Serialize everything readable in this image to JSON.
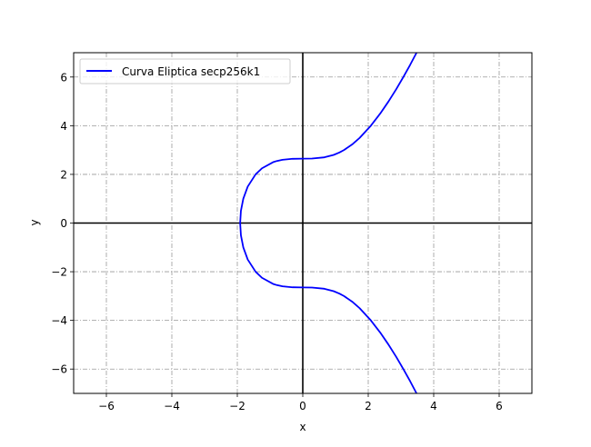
{
  "chart_data": {
    "type": "line",
    "title": "",
    "xlabel": "x",
    "ylabel": "y",
    "xlim": [
      -7,
      7
    ],
    "ylim": [
      -7,
      7
    ],
    "xticks": [
      -6,
      -4,
      -2,
      0,
      2,
      4,
      6
    ],
    "yticks": [
      -6,
      -4,
      -2,
      0,
      2,
      4,
      6
    ],
    "xtick_labels": [
      "−6",
      "−4",
      "−2",
      "0",
      "2",
      "4",
      "6"
    ],
    "ytick_labels": [
      "−6",
      "−4",
      "−2",
      "0",
      "2",
      "4",
      "6"
    ],
    "grid": true,
    "grid_style": "dash-dot",
    "axis_lines_at_zero": true,
    "legend_position": "top-left",
    "series": [
      {
        "name": "Curva Eliptica secp256k1",
        "color": "#0000ff",
        "x": [
          3.476,
          3.28,
          3.072,
          2.855,
          2.621,
          2.366,
          2.08,
          1.738,
          1.527,
          1.26,
          1.121,
          0.944,
          0.659,
          0.282,
          0,
          -0.312,
          -0.621,
          -0.792,
          -0.909,
          -1.247,
          -1.442,
          -1.681,
          -1.817,
          -1.89,
          -1.913,
          -1.89,
          -1.817,
          -1.681,
          -1.442,
          -1.247,
          -0.909,
          -0.792,
          -0.621,
          -0.312,
          0,
          0.282,
          0.659,
          0.944,
          1.121,
          1.26,
          1.527,
          1.738,
          2.08,
          2.366,
          2.621,
          2.855,
          3.072,
          3.28,
          3.476
        ],
        "y": [
          7,
          6.5,
          6,
          5.5,
          5,
          4.5,
          4,
          3.5,
          3.25,
          3,
          2.9,
          2.8,
          2.7,
          2.65,
          2.646,
          2.64,
          2.6,
          2.55,
          2.5,
          2.25,
          2,
          1.5,
          1,
          0.5,
          0,
          -0.5,
          -1,
          -1.5,
          -2,
          -2.25,
          -2.5,
          -2.55,
          -2.6,
          -2.64,
          -2.646,
          -2.65,
          -2.7,
          -2.8,
          -2.9,
          -3,
          -3.25,
          -3.5,
          -4,
          -4.5,
          -5,
          -5.5,
          -6,
          -6.5,
          -7
        ]
      }
    ]
  }
}
